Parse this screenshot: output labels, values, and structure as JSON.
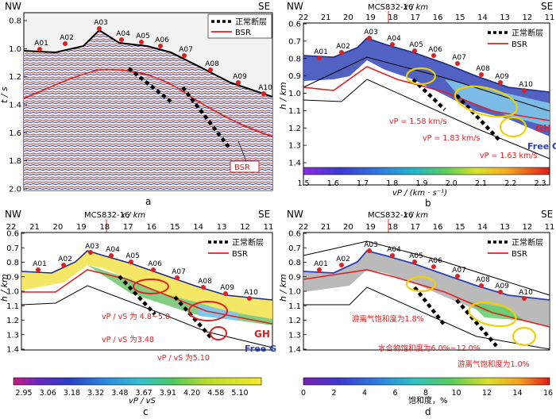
{
  "direction": {
    "left": "NW",
    "right": "SE"
  },
  "profile": "MCS832-16",
  "x_axis_label": "x / km",
  "legend": {
    "fault": "正常断层",
    "bsr": "BSR"
  },
  "colors": {
    "bsr": "#e02020",
    "fault": "#000000",
    "seafloor": "#2c3fb5",
    "station": "#e02020",
    "ellipse": "#f0d000"
  },
  "x_ticks": [
    "22",
    "21",
    "20",
    "19",
    "18",
    "17",
    "16",
    "15",
    "14",
    "13",
    "12",
    "11"
  ],
  "stations": [
    "A01",
    "A02",
    "A03",
    "A04",
    "A05",
    "A06",
    "A07",
    "A08",
    "A09",
    "A10"
  ],
  "panel_a": {
    "label": "a",
    "yaxis": "t / s",
    "yticks": [
      "0.8",
      "1.0",
      "1.2",
      "1.4",
      "1.6",
      "1.8",
      "2.0"
    ],
    "bsr_box": "BSR"
  },
  "panel_b": {
    "label": "b",
    "yaxis": "h / km",
    "yticks": [
      "0.6",
      "0.7",
      "0.8",
      "0.9",
      "1.0",
      "1.1",
      "1.2",
      "1.3",
      "1.4"
    ],
    "annotations": [
      "vP = 1.58 km/s",
      "vP = 1.83 km/s",
      "vP = 1.63 km/s"
    ],
    "edge_text": [
      "GH",
      "Free G"
    ],
    "colorbar_ticks": [
      "1.5",
      "1.6",
      "1.7",
      "1.8",
      "1.9",
      "2.0",
      "2.1",
      "2.2",
      "2.3"
    ],
    "colorbar_label": "vP / (km · s⁻¹)"
  },
  "panel_c": {
    "label": "c",
    "yaxis": "h / km",
    "yticks": [
      "0.6",
      "0.7",
      "0.8",
      "0.9",
      "1.0",
      "1.1",
      "1.2",
      "1.3",
      "1.4"
    ],
    "annotations": [
      "vP / vS 为 4.8~5.0",
      "vP / vS 为3.48",
      "vP / vS 为5.10"
    ],
    "edge_text": [
      "GH",
      "Free G"
    ],
    "colorbar_ticks": [
      "2.95",
      "3.06",
      "3.18",
      "3.32",
      "3.48",
      "3.67",
      "3.91",
      "4.20",
      "4.58",
      "5.10"
    ],
    "colorbar_label": "vP / vS"
  },
  "panel_d": {
    "label": "d",
    "yaxis": "h / km",
    "yticks": [
      "0.6",
      "0.7",
      "0.8",
      "0.9",
      "1.0",
      "1.1",
      "1.2",
      "1.3",
      "1.4"
    ],
    "annotations": [
      "游离气饱和度为1.8%",
      "水合物饱和度为6.0%~12.0%",
      "游离气饱和度为1.0%"
    ],
    "colorbar_ticks": [
      "0",
      "2",
      "4",
      "6",
      "8",
      "10",
      "12",
      "14",
      "16"
    ],
    "colorbar_label": "饱和度，%"
  }
}
